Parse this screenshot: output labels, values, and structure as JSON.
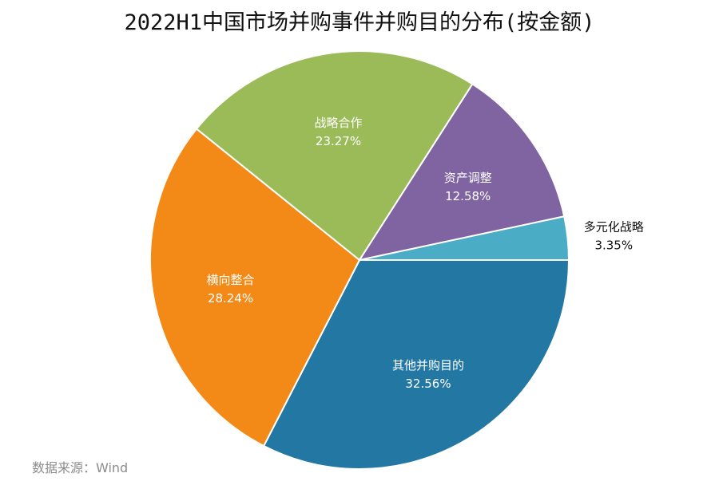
{
  "chart_data": {
    "type": "pie",
    "title": "2022H1中国市场并购事件并购目的分布(按金额)",
    "unit": "%",
    "slices": [
      {
        "label": "其他并购目的",
        "value": 32.56,
        "value_text": "32.56%",
        "color": "#2277A3",
        "label_color": "#ffffff"
      },
      {
        "label": "横向整合",
        "value": 28.24,
        "value_text": "28.24%",
        "color": "#F38A18",
        "label_color": "#ffffff"
      },
      {
        "label": "战略合作",
        "value": 23.27,
        "value_text": "23.27%",
        "color": "#9BBB59",
        "label_color": "#ffffff"
      },
      {
        "label": "资产调整",
        "value": 12.58,
        "value_text": "12.58%",
        "color": "#8064A2",
        "label_color": "#ffffff"
      },
      {
        "label": "多元化战略",
        "value": 3.35,
        "value_text": "3.35%",
        "color": "#4BACC6",
        "label_color": "#111111",
        "label_outside": true
      }
    ]
  },
  "watermark": "Wind",
  "source": "数据来源：Wind"
}
